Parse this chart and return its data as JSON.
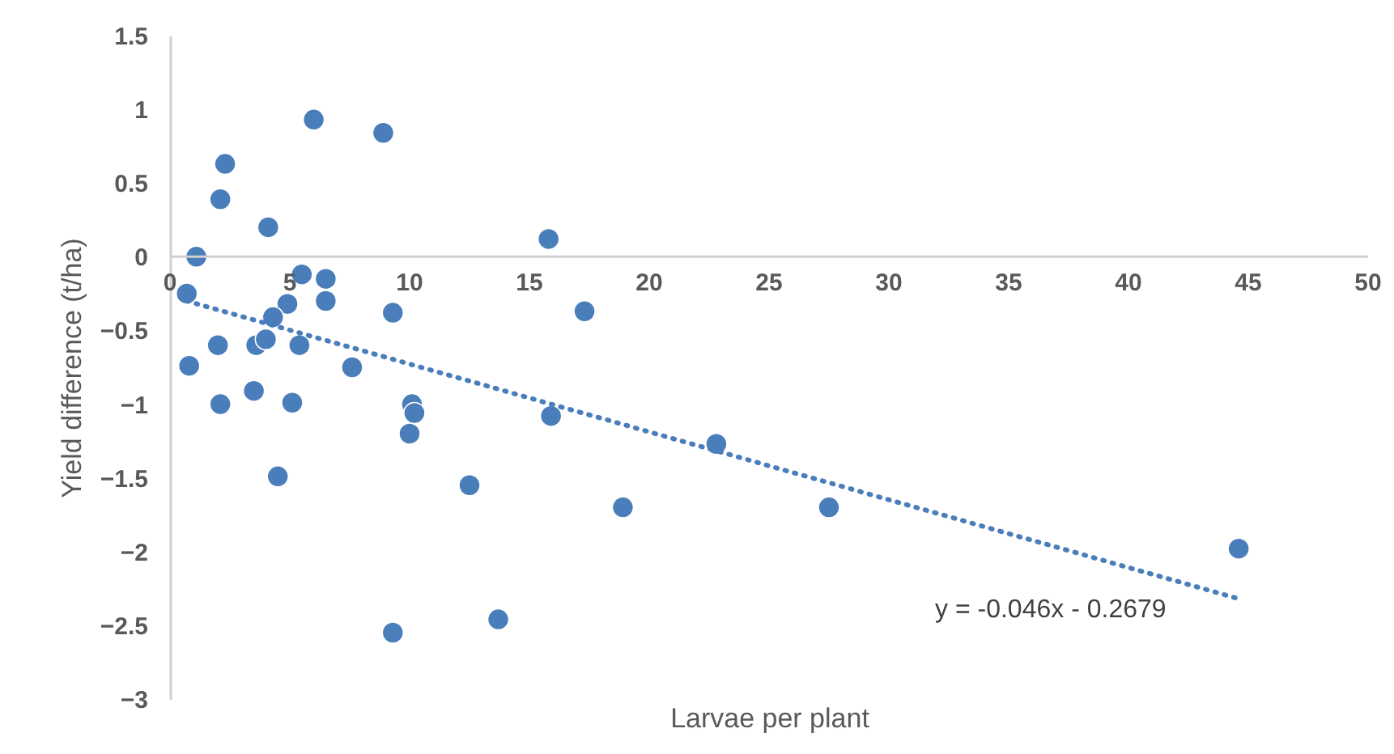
{
  "chart_data": {
    "type": "scatter",
    "xlabel": "Larvae per plant",
    "ylabel": "Yield difference (t/ha)",
    "xlim": [
      0,
      50
    ],
    "xticks": [
      0,
      5,
      10,
      15,
      20,
      25,
      30,
      35,
      40,
      45,
      50
    ],
    "ylim": [
      -3,
      1.5
    ],
    "yticks": [
      -3,
      -2.5,
      -2,
      -1.5,
      -1,
      -0.5,
      0,
      0.5,
      1,
      1.5
    ],
    "grid": false,
    "marker": "circle",
    "series": [
      {
        "color": "#4a7ebb",
        "x": [
          0.7,
          1.1,
          0.8,
          2.1,
          2.3,
          2.0,
          2.1,
          4.1,
          6.0,
          8.9,
          5.5,
          6.5,
          6.5,
          4.9,
          4.3,
          3.6,
          4.0,
          5.4,
          3.5,
          7.6,
          5.1,
          4.5,
          9.3,
          10.1,
          10.2,
          10.0,
          9.3,
          12.5,
          13.7,
          15.8,
          15.9,
          17.3,
          18.9,
          22.8,
          27.5,
          44.6
        ],
        "values": [
          -0.25,
          0.0,
          -0.74,
          0.39,
          0.63,
          -0.6,
          -1.0,
          0.2,
          0.93,
          0.84,
          -0.12,
          -0.15,
          -0.3,
          -0.32,
          -0.41,
          -0.6,
          -0.56,
          -0.6,
          -0.91,
          -0.75,
          -0.99,
          -1.49,
          -0.38,
          -1.0,
          -1.06,
          -1.2,
          -2.55,
          -1.55,
          -2.46,
          0.12,
          -1.08,
          -0.37,
          -1.7,
          -1.27,
          -1.7,
          -1.98
        ]
      },
      {
        "type": "line",
        "color": "#4a7ebb",
        "line_style": "dotted",
        "marker": "none",
        "x": [
          0.7,
          44.6
        ],
        "values": [
          -0.3,
          -2.32
        ]
      }
    ],
    "annotations": [
      "y = -0.046x - 0.2679"
    ]
  }
}
